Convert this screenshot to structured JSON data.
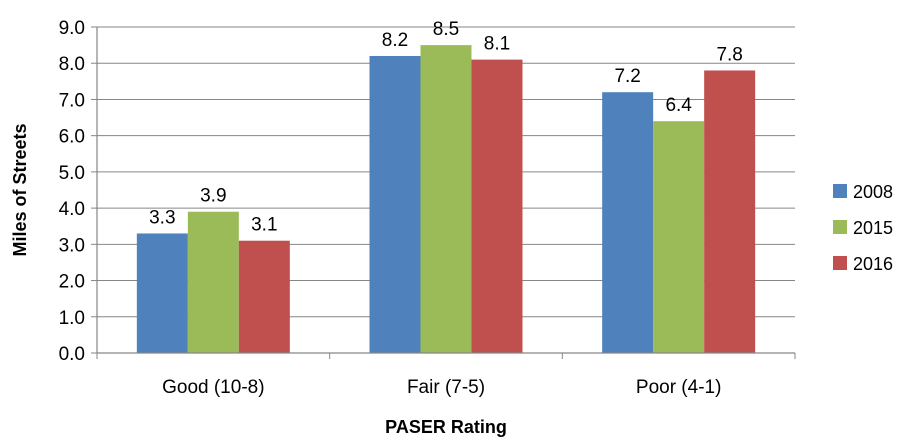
{
  "chart_data": {
    "type": "bar",
    "categories": [
      "Good (10-8)",
      "Fair (7-5)",
      "Poor (4-1)"
    ],
    "series": [
      {
        "name": "2008",
        "values": [
          3.3,
          8.2,
          7.2
        ],
        "labels": [
          "3.3",
          "8.2",
          "7.2"
        ],
        "color": "#4F81BD"
      },
      {
        "name": "2015",
        "values": [
          3.9,
          8.5,
          6.4
        ],
        "labels": [
          "3.9",
          "8.5",
          "6.4"
        ],
        "color": "#9BBB59"
      },
      {
        "name": "2016",
        "values": [
          3.1,
          8.1,
          7.8
        ],
        "labels": [
          "3.1",
          "8.1",
          "7.8"
        ],
        "color": "#C0504D"
      }
    ],
    "xlabel": "PASER Rating",
    "ylabel": "Miles of Streets",
    "ylim": [
      0,
      9
    ],
    "yticks": [
      "0.0",
      "1.0",
      "2.0",
      "3.0",
      "4.0",
      "5.0",
      "6.0",
      "7.0",
      "8.0",
      "9.0"
    ],
    "grid": true,
    "legend": "right"
  }
}
